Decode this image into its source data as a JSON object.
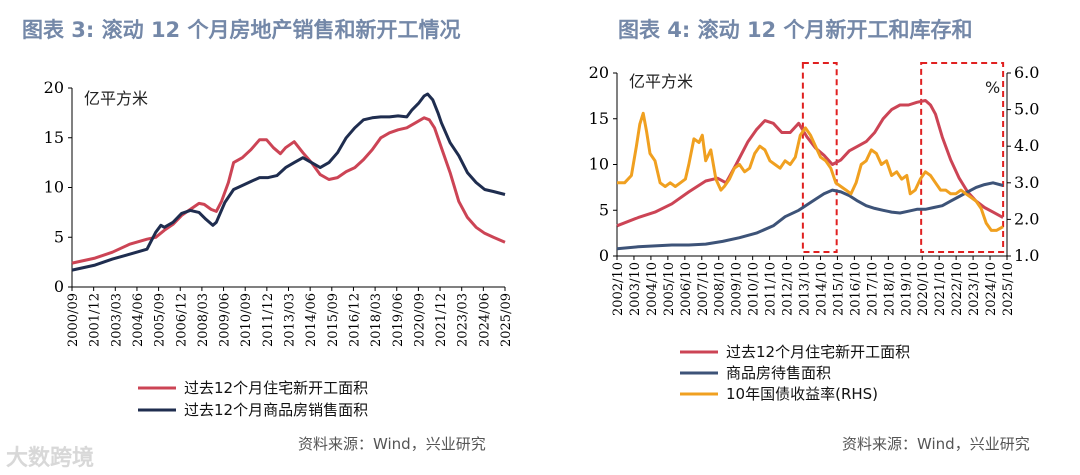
{
  "watermark": "大数跨境",
  "left": {
    "title": "图表 3:  滚动 12 个月房地产销售和新开工情况",
    "source": "资料来源：Wind，兴业研究",
    "chart_data": {
      "type": "line",
      "title": "滚动 12 个月房地产销售和新开工情况",
      "unit": "亿平方米",
      "ylim": [
        0,
        20
      ],
      "yticks": [
        "0",
        "5",
        "10",
        "15",
        "20"
      ],
      "xlim": [
        2000.67,
        2025.67
      ],
      "xtick_labels": [
        "2000/09",
        "2001/12",
        "2003/03",
        "2004/06",
        "2005/09",
        "2006/12",
        "2008/03",
        "2009/06",
        "2010/09",
        "2011/12",
        "2013/03",
        "2014/06",
        "2015/09",
        "2016/12",
        "2018/03",
        "2019/06",
        "2020/09",
        "2021/12",
        "2023/03",
        "2024/06",
        "2025/09"
      ],
      "series": [
        {
          "name": "过去12个月住宅新开工面积",
          "color": "#cc4455",
          "x": [
            2000.67,
            2002,
            2003,
            2004,
            2005,
            2005.5,
            2006,
            2006.5,
            2007,
            2007.5,
            2008,
            2008.3,
            2008.7,
            2009,
            2009.3,
            2009.7,
            2010,
            2010.5,
            2011,
            2011.5,
            2011.9,
            2012.3,
            2012.7,
            2013,
            2013.5,
            2014,
            2014.5,
            2015,
            2015.5,
            2016,
            2016.5,
            2017,
            2017.5,
            2018,
            2018.5,
            2019,
            2019.5,
            2020,
            2020.5,
            2021,
            2021.3,
            2021.6,
            2022,
            2022.5,
            2023,
            2023.5,
            2024,
            2024.5,
            2025,
            2025.67
          ],
          "y": [
            2.4,
            2.9,
            3.5,
            4.3,
            4.8,
            5.0,
            5.7,
            6.3,
            7.2,
            7.8,
            8.4,
            8.3,
            7.8,
            7.6,
            8.6,
            10.5,
            12.5,
            13.0,
            13.8,
            14.8,
            14.8,
            14.0,
            13.4,
            14.0,
            14.6,
            13.5,
            12.5,
            11.3,
            10.8,
            11.0,
            11.6,
            12.0,
            12.8,
            13.8,
            15.0,
            15.5,
            15.8,
            16.0,
            16.5,
            17.0,
            16.8,
            16.0,
            14.0,
            11.5,
            8.6,
            7.0,
            6.0,
            5.4,
            5.0,
            4.5
          ]
        },
        {
          "name": "过去12个月商品房销售面积",
          "color": "#1f2d4f",
          "x": [
            2000.67,
            2002,
            2003,
            2004,
            2005,
            2005.5,
            2005.8,
            2006,
            2006.5,
            2007,
            2007.5,
            2008,
            2008.4,
            2008.8,
            2009,
            2009.5,
            2010,
            2010.5,
            2011,
            2011.5,
            2012,
            2012.5,
            2013,
            2013.5,
            2014,
            2014.5,
            2015,
            2015.5,
            2016,
            2016.5,
            2017,
            2017.5,
            2018,
            2018.5,
            2019,
            2019.5,
            2020,
            2020.3,
            2020.7,
            2021,
            2021.2,
            2021.5,
            2021.8,
            2022,
            2022.5,
            2023,
            2023.5,
            2024,
            2024.5,
            2025,
            2025.67
          ],
          "y": [
            1.7,
            2.2,
            2.8,
            3.3,
            3.8,
            5.5,
            6.2,
            6.0,
            6.5,
            7.4,
            7.7,
            7.5,
            6.8,
            6.2,
            6.5,
            8.5,
            9.8,
            10.2,
            10.6,
            11.0,
            11.0,
            11.2,
            12.0,
            12.5,
            13.0,
            12.5,
            12.0,
            12.5,
            13.5,
            15.0,
            16.0,
            16.8,
            17.0,
            17.1,
            17.1,
            17.2,
            17.1,
            17.8,
            18.5,
            19.2,
            19.4,
            18.8,
            17.5,
            16.5,
            14.5,
            13.2,
            11.5,
            10.5,
            9.8,
            9.6,
            9.3
          ]
        }
      ]
    }
  },
  "right": {
    "title": "图表 4:  滚动 12 个月新开工和库存和",
    "source": "资料来源：Wind，兴业研究",
    "chart_data": {
      "type": "line",
      "title": "滚动 12 个月新开工和库存和",
      "unit_left": "亿平方米",
      "unit_right": "%",
      "ylim": [
        0,
        20
      ],
      "ylim_right": [
        1.0,
        6.0
      ],
      "yticks": [
        "0",
        "5",
        "10",
        "15",
        "20"
      ],
      "yticks_right": [
        "1.0",
        "2.0",
        "3.0",
        "4.0",
        "5.0",
        "6.0"
      ],
      "xlim": [
        2002.75,
        2025.83
      ],
      "xtick_labels": [
        "2002/10",
        "2003/10",
        "2004/10",
        "2005/10",
        "2006/10",
        "2007/10",
        "2008/10",
        "2009/10",
        "2010/10",
        "2011/10",
        "2012/10",
        "2013/10",
        "2014/10",
        "2015/10",
        "2016/10",
        "2017/10",
        "2018/10",
        "2019/10",
        "2020/10",
        "2021/10",
        "2022/10",
        "2023/10",
        "2024/10",
        "2025/10"
      ],
      "highlight_ranges": [
        [
          2013.75,
          2015.75
        ],
        [
          2020.75,
          2025.6
        ]
      ],
      "series": [
        {
          "name": "过去12个月住宅新开工面积",
          "color": "#cc4455",
          "axis": "left",
          "x": [
            2002.75,
            2004,
            2005,
            2006,
            2007,
            2008,
            2008.7,
            2009.2,
            2009.8,
            2010.5,
            2011,
            2011.5,
            2012,
            2012.5,
            2013,
            2013.5,
            2014,
            2014.5,
            2015,
            2015.5,
            2016,
            2016.5,
            2017,
            2017.5,
            2018,
            2018.5,
            2019,
            2019.5,
            2020,
            2020.5,
            2021,
            2021.3,
            2021.6,
            2022,
            2022.5,
            2023,
            2023.5,
            2024,
            2024.5,
            2025,
            2025.6
          ],
          "y": [
            3.3,
            4.2,
            4.8,
            5.7,
            7.0,
            8.2,
            8.5,
            8.0,
            10.0,
            12.5,
            13.8,
            14.8,
            14.5,
            13.5,
            13.5,
            14.5,
            13.0,
            11.8,
            11.0,
            10.0,
            10.5,
            11.5,
            12.0,
            12.5,
            13.5,
            15.0,
            16.0,
            16.5,
            16.5,
            16.8,
            17.0,
            16.5,
            15.5,
            13.0,
            10.5,
            8.5,
            7.0,
            6.0,
            5.3,
            4.8,
            4.2
          ]
        },
        {
          "name": "商品房待售面积",
          "color": "#3d5378",
          "axis": "left",
          "x": [
            2002.75,
            2004,
            2005,
            2006,
            2007,
            2008,
            2009,
            2010,
            2011,
            2012,
            2012.7,
            2013.5,
            2014,
            2014.5,
            2015,
            2015.5,
            2016,
            2016.5,
            2017,
            2017.5,
            2018,
            2018.5,
            2019,
            2019.5,
            2020,
            2020.5,
            2021,
            2021.5,
            2022,
            2022.5,
            2023,
            2023.5,
            2024,
            2024.5,
            2025,
            2025.6
          ],
          "y": [
            0.8,
            1.0,
            1.1,
            1.2,
            1.2,
            1.3,
            1.6,
            2.0,
            2.5,
            3.3,
            4.3,
            5.0,
            5.6,
            6.2,
            6.8,
            7.2,
            7.0,
            6.6,
            6.0,
            5.5,
            5.2,
            5.0,
            4.8,
            4.7,
            4.9,
            5.1,
            5.1,
            5.3,
            5.5,
            6.0,
            6.5,
            7.0,
            7.5,
            7.8,
            8.0,
            7.7
          ]
        },
        {
          "name": "10年国债收益率(RHS)",
          "color": "#f0a020",
          "axis": "right",
          "x": [
            2002.75,
            2003.2,
            2003.6,
            2003.9,
            2004.1,
            2004.3,
            2004.5,
            2004.7,
            2005.0,
            2005.3,
            2005.6,
            2005.9,
            2006.2,
            2006.5,
            2006.8,
            2007.0,
            2007.3,
            2007.6,
            2007.8,
            2008.0,
            2008.3,
            2008.6,
            2008.9,
            2009.1,
            2009.4,
            2009.7,
            2010.0,
            2010.3,
            2010.6,
            2010.9,
            2011.2,
            2011.5,
            2011.8,
            2012.1,
            2012.4,
            2012.7,
            2013.0,
            2013.3,
            2013.6,
            2013.9,
            2014.2,
            2014.5,
            2014.8,
            2015.1,
            2015.4,
            2015.7,
            2016.0,
            2016.3,
            2016.6,
            2016.9,
            2017.2,
            2017.5,
            2017.8,
            2018.1,
            2018.4,
            2018.7,
            2019.0,
            2019.3,
            2019.6,
            2019.9,
            2020.1,
            2020.4,
            2020.7,
            2021.0,
            2021.3,
            2021.6,
            2021.9,
            2022.2,
            2022.5,
            2022.8,
            2023.1,
            2023.4,
            2023.7,
            2024.0,
            2024.3,
            2024.6,
            2024.9,
            2025.2,
            2025.6
          ],
          "y": [
            3.0,
            3.0,
            3.2,
            4.0,
            4.6,
            4.9,
            4.4,
            3.8,
            3.6,
            3.0,
            2.9,
            3.0,
            2.9,
            3.0,
            3.1,
            3.5,
            4.2,
            4.1,
            4.3,
            3.6,
            3.9,
            3.1,
            2.8,
            2.9,
            3.1,
            3.4,
            3.5,
            3.3,
            3.4,
            3.8,
            4.0,
            3.9,
            3.6,
            3.5,
            3.4,
            3.6,
            3.5,
            3.7,
            4.3,
            4.5,
            4.3,
            4.0,
            3.7,
            3.6,
            3.4,
            3.0,
            2.9,
            2.8,
            2.7,
            3.0,
            3.5,
            3.6,
            3.9,
            3.8,
            3.5,
            3.6,
            3.2,
            3.3,
            3.1,
            3.2,
            2.7,
            2.8,
            3.1,
            3.3,
            3.2,
            3.0,
            2.8,
            2.8,
            2.7,
            2.7,
            2.8,
            2.7,
            2.6,
            2.5,
            2.3,
            1.9,
            1.7,
            1.7,
            1.8
          ]
        }
      ]
    }
  }
}
